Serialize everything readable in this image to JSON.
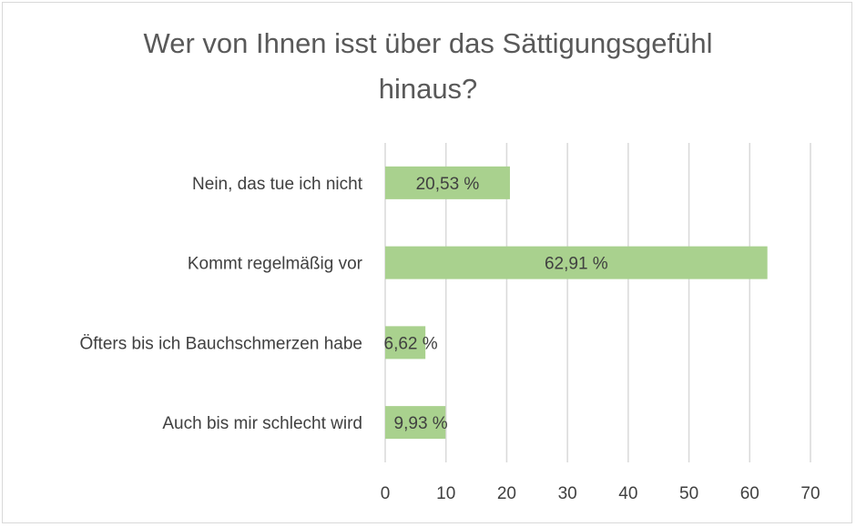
{
  "chart_data": {
    "type": "bar",
    "orientation": "horizontal",
    "title_lines": [
      "Wer von Ihnen isst über das Sättigungsgefühl",
      "hinaus?"
    ],
    "categories": [
      "Nein, das tue ich nicht",
      "Kommt regelmäßig vor",
      "Öfters bis ich Bauchschmerzen habe",
      "Auch bis mir schlecht wird"
    ],
    "values": [
      20.53,
      62.91,
      6.62,
      9.93
    ],
    "data_labels": [
      "20,53 %",
      "62,91 %",
      "6,62 %",
      "9,93 %"
    ],
    "xlim": [
      0,
      70
    ],
    "x_ticks": [
      "0",
      "10",
      "20",
      "30",
      "40",
      "50",
      "60",
      "70"
    ],
    "grid": true,
    "bar_color": "#a9d18e",
    "xlabel": "",
    "ylabel": ""
  }
}
